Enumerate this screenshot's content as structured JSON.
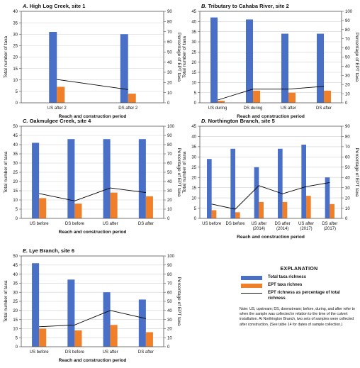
{
  "colors": {
    "total": "#4a6fc7",
    "ept": "#f07f2a",
    "line": "#000000"
  },
  "axis_labels": {
    "left": "Total number of taxa",
    "right": "Percentage of EPT taxa",
    "x": "Reach and construction period"
  },
  "legend": {
    "title": "EXPLANATION",
    "total": "Total taxa richness",
    "ept": "EPT taxa richnes",
    "line": "EPT richness as percentage of total richness",
    "note": "Note: US, upstream; DS, downstream; before, during, and after refer to when the sample was collected in relation to the time of the culvert installation. At Northington Branch, two sets of samples were collected after construction. (See table 14 for dates of sample collection.)"
  },
  "chart_data": [
    {
      "type": "bar",
      "letter": "A.",
      "title": "High Log Creek, site 1",
      "categories": [
        [
          "US after 2"
        ],
        [
          "DS after 2"
        ]
      ],
      "series": [
        {
          "name": "Total taxa richness",
          "values": [
            31,
            30
          ]
        },
        {
          "name": "EPT taxa richnes",
          "values": [
            7,
            4
          ]
        },
        {
          "name": "EPT richness as percentage of total richness",
          "values": [
            23,
            13
          ]
        }
      ],
      "ylim": [
        0,
        40
      ],
      "y2lim": [
        0,
        90
      ],
      "yticks": [
        0,
        5,
        10,
        15,
        20,
        25,
        30,
        35,
        40
      ],
      "y2ticks": [
        0,
        10,
        20,
        30,
        40,
        50,
        60,
        70,
        80,
        90
      ],
      "xlabel": "Reach and construction period"
    },
    {
      "type": "bar",
      "letter": "B.",
      "title": "Tributary to Cahaba River, site 2",
      "categories": [
        [
          "US during"
        ],
        [
          "DS during"
        ],
        [
          "US after"
        ],
        [
          "DS after"
        ]
      ],
      "series": [
        {
          "name": "Total taxa richness",
          "values": [
            42,
            41,
            34,
            34
          ]
        },
        {
          "name": "EPT taxa richnes",
          "values": [
            1,
            6,
            5,
            6
          ]
        },
        {
          "name": "EPT richness as percentage of total richness",
          "values": [
            3,
            15,
            15,
            18
          ]
        }
      ],
      "ylim": [
        0,
        45
      ],
      "y2lim": [
        0,
        100
      ],
      "yticks": [
        0,
        5,
        10,
        15,
        20,
        25,
        30,
        35,
        40,
        45
      ],
      "y2ticks": [
        0,
        10,
        20,
        30,
        40,
        50,
        60,
        70,
        80,
        90,
        100
      ],
      "xlabel": "Reach and construction period"
    },
    {
      "type": "bar",
      "letter": "C.",
      "title": "Oakmulgee Creek, site 4",
      "categories": [
        [
          "US before"
        ],
        [
          "DS before"
        ],
        [
          "US after"
        ],
        [
          "DS after"
        ]
      ],
      "series": [
        {
          "name": "Total taxa richness",
          "values": [
            41,
            43,
            43,
            43
          ]
        },
        {
          "name": "EPT taxa richnes",
          "values": [
            11,
            8,
            14,
            12
          ]
        },
        {
          "name": "EPT richness as percentage of total richness",
          "values": [
            27,
            19,
            33,
            28
          ]
        }
      ],
      "ylim": [
        0,
        50
      ],
      "y2lim": [
        0,
        100
      ],
      "yticks": [
        0,
        5,
        10,
        15,
        20,
        25,
        30,
        35,
        40,
        45,
        50
      ],
      "y2ticks": [
        0,
        10,
        20,
        30,
        40,
        50,
        60,
        70,
        80,
        90,
        100
      ],
      "xlabel": "Reach and construction period"
    },
    {
      "type": "bar",
      "letter": "D.",
      "title": "Northington Branch, site 5",
      "categories": [
        [
          "US before"
        ],
        [
          "DS before"
        ],
        [
          "US after",
          "(2014)"
        ],
        [
          "DS after",
          "(2014)"
        ],
        [
          "US after",
          "(2017)"
        ],
        [
          "DS after",
          "(2017)"
        ]
      ],
      "series": [
        {
          "name": "Total taxa richness",
          "values": [
            29,
            34,
            25,
            34,
            36,
            20
          ]
        },
        {
          "name": "EPT taxa richnes",
          "values": [
            4,
            3,
            8,
            8,
            11,
            7
          ]
        },
        {
          "name": "EPT richness as percentage of total richness",
          "values": [
            14,
            9,
            32,
            24,
            31,
            35
          ]
        }
      ],
      "ylim": [
        0,
        45
      ],
      "y2lim": [
        0,
        90
      ],
      "yticks": [
        0,
        5,
        10,
        15,
        20,
        25,
        30,
        35,
        40,
        45
      ],
      "y2ticks": [
        0,
        10,
        20,
        30,
        40,
        50,
        60,
        70,
        80,
        90
      ],
      "xlabel": "Reach and construction period"
    },
    {
      "type": "bar",
      "letter": "E.",
      "title": "Lye Branch, site 6",
      "categories": [
        [
          "US before"
        ],
        [
          "DS before"
        ],
        [
          "US after"
        ],
        [
          "DS after"
        ]
      ],
      "series": [
        {
          "name": "Total taxa richness",
          "values": [
            46,
            37,
            30,
            26
          ]
        },
        {
          "name": "EPT taxa richnes",
          "values": [
            10,
            9,
            12,
            8
          ]
        },
        {
          "name": "EPT richness as percentage of total richness",
          "values": [
            22,
            24,
            40,
            31
          ]
        }
      ],
      "ylim": [
        0,
        50
      ],
      "y2lim": [
        0,
        100
      ],
      "yticks": [
        0,
        5,
        10,
        15,
        20,
        25,
        30,
        35,
        40,
        45,
        50
      ],
      "y2ticks": [
        0,
        10,
        20,
        30,
        40,
        50,
        60,
        70,
        80,
        90,
        100
      ],
      "xlabel": "Reach and construction period"
    }
  ]
}
